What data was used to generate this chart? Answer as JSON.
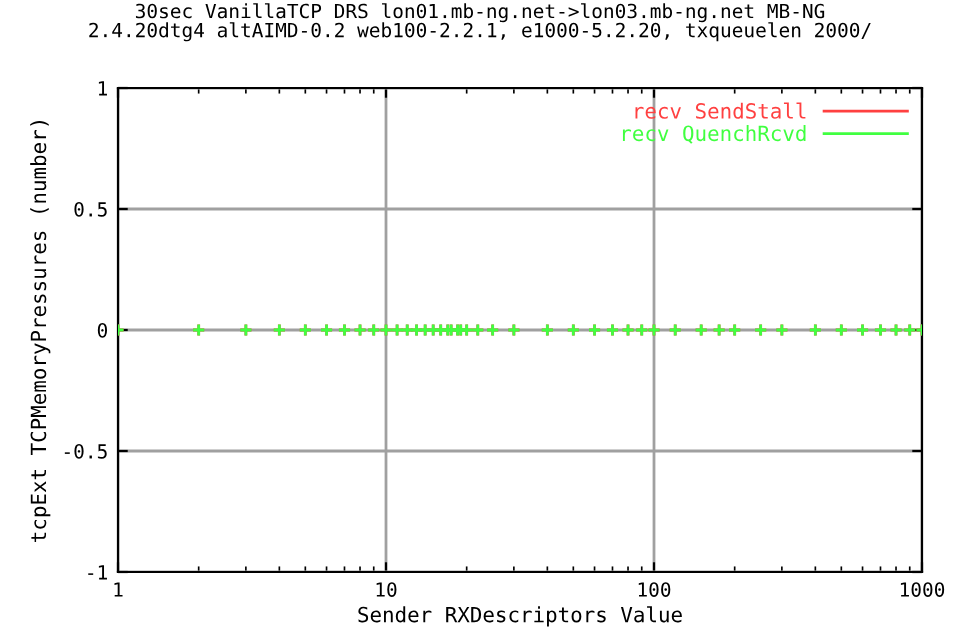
{
  "chart_data": {
    "type": "scatter",
    "title": "30sec VanillaTCP DRS lon01.mb-ng.net->lon03.mb-ng.net MB-NG\n2.4.20dtg4 altAIMD-0.2 web100-2.2.1, e1000-5.2.20, txqueuelen 2000/",
    "xlabel": "Sender RXDescriptors Value",
    "ylabel": "tcpExt TCPMemoryPressures (number)",
    "x": [
      1,
      2,
      3,
      4,
      5,
      6,
      7,
      8,
      9,
      10,
      11,
      12,
      13,
      14,
      15,
      16,
      17,
      17.5,
      18.5,
      19,
      20,
      22,
      25,
      30,
      40,
      50,
      60,
      70,
      80,
      90,
      100,
      120,
      150,
      175,
      200,
      250,
      300,
      400,
      500,
      600,
      700,
      800,
      900,
      1000
    ],
    "series": [
      {
        "name": "recv SendStall",
        "color": "#ff4040",
        "values": [
          0,
          0,
          0,
          0,
          0,
          0,
          0,
          0,
          0,
          0,
          0,
          0,
          0,
          0,
          0,
          0,
          0,
          0,
          0,
          0,
          0,
          0,
          0,
          0,
          0,
          0,
          0,
          0,
          0,
          0,
          0,
          0,
          0,
          0,
          0,
          0,
          0,
          0,
          0,
          0,
          0,
          0,
          0,
          0
        ]
      },
      {
        "name": "recv QuenchRcvd",
        "color": "#40ff40",
        "values": [
          0,
          0,
          0,
          0,
          0,
          0,
          0,
          0,
          0,
          0,
          0,
          0,
          0,
          0,
          0,
          0,
          0,
          0,
          0,
          0,
          0,
          0,
          0,
          0,
          0,
          0,
          0,
          0,
          0,
          0,
          0,
          0,
          0,
          0,
          0,
          0,
          0,
          0,
          0,
          0,
          0,
          0,
          0,
          0
        ]
      }
    ],
    "log": "x",
    "xlim": [
      1,
      1000
    ],
    "xticks": [
      1,
      10,
      100,
      1000
    ],
    "ylim": [
      -1,
      1
    ],
    "yticks": [
      -1,
      -0.5,
      0,
      0.5,
      1
    ],
    "grid": true,
    "legend": "top right",
    "marker": "cross"
  }
}
